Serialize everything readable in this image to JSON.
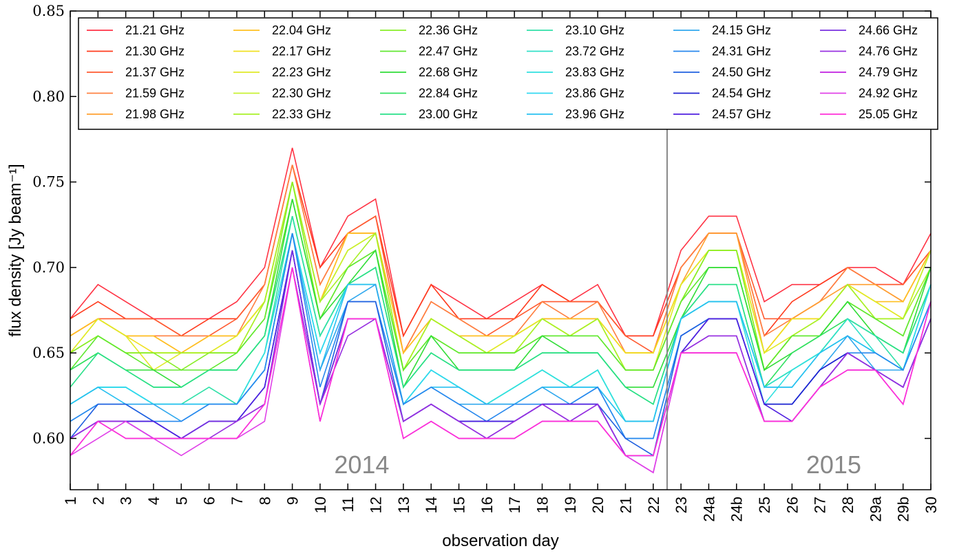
{
  "chart_data": {
    "type": "line",
    "xlabel": "observation day",
    "ylabel": "flux density [Jy beam⁻¹]",
    "ylim": [
      0.57,
      0.85
    ],
    "yticks": [
      "0.60",
      "0.65",
      "0.70",
      "0.75",
      "0.80",
      "0.85"
    ],
    "ytick_values": [
      0.6,
      0.65,
      0.7,
      0.75,
      0.8,
      0.85
    ],
    "categories": [
      "1",
      "2",
      "3",
      "4",
      "5",
      "6",
      "7",
      "8",
      "9",
      "10",
      "11",
      "12",
      "13",
      "14",
      "15",
      "16",
      "17",
      "18",
      "19",
      "20",
      "21",
      "22",
      "23",
      "24a",
      "24b",
      "25",
      "26",
      "27",
      "28",
      "29a",
      "29b",
      "30"
    ],
    "grid": false,
    "legend_position": "top",
    "annotations": [
      {
        "text": "2014",
        "x_index": 10.5
      },
      {
        "text": "2015",
        "x_index": 27.5
      }
    ],
    "divider_after_index": 21,
    "series": [
      {
        "name": "21.21 GHz",
        "color": "#ff3344",
        "values": [
          0.67,
          0.69,
          0.68,
          0.67,
          0.67,
          0.67,
          0.68,
          0.7,
          0.77,
          0.7,
          0.73,
          0.74,
          0.66,
          0.69,
          0.68,
          0.67,
          0.68,
          0.69,
          0.68,
          0.69,
          0.66,
          0.66,
          0.71,
          0.73,
          0.73,
          0.68,
          0.69,
          0.69,
          0.7,
          0.7,
          0.69,
          0.72
        ]
      },
      {
        "name": "21.30 GHz",
        "color": "#ff3b1e",
        "values": [
          0.67,
          0.68,
          0.67,
          0.67,
          0.66,
          0.67,
          0.67,
          0.69,
          0.76,
          0.7,
          0.72,
          0.73,
          0.66,
          0.69,
          0.67,
          0.67,
          0.67,
          0.69,
          0.68,
          0.68,
          0.66,
          0.66,
          0.7,
          0.72,
          0.72,
          0.66,
          0.68,
          0.69,
          0.7,
          0.69,
          0.69,
          0.71
        ]
      },
      {
        "name": "21.37 GHz",
        "color": "#ff5a30",
        "values": [
          0.66,
          0.67,
          0.67,
          0.67,
          0.66,
          0.66,
          0.67,
          0.69,
          0.76,
          0.69,
          0.72,
          0.73,
          0.65,
          0.68,
          0.67,
          0.66,
          0.67,
          0.68,
          0.68,
          0.68,
          0.66,
          0.65,
          0.7,
          0.72,
          0.72,
          0.67,
          0.67,
          0.68,
          0.7,
          0.69,
          0.69,
          0.71
        ]
      },
      {
        "name": "21.59 GHz",
        "color": "#ff8040",
        "values": [
          0.66,
          0.67,
          0.66,
          0.66,
          0.66,
          0.66,
          0.66,
          0.69,
          0.76,
          0.69,
          0.72,
          0.72,
          0.65,
          0.68,
          0.67,
          0.66,
          0.66,
          0.68,
          0.67,
          0.68,
          0.65,
          0.65,
          0.7,
          0.72,
          0.72,
          0.66,
          0.67,
          0.68,
          0.7,
          0.69,
          0.68,
          0.71
        ]
      },
      {
        "name": "21.98 GHz",
        "color": "#ffa030",
        "values": [
          0.66,
          0.67,
          0.66,
          0.66,
          0.65,
          0.66,
          0.66,
          0.68,
          0.75,
          0.68,
          0.72,
          0.72,
          0.65,
          0.67,
          0.66,
          0.66,
          0.66,
          0.67,
          0.67,
          0.67,
          0.65,
          0.65,
          0.69,
          0.72,
          0.72,
          0.65,
          0.67,
          0.68,
          0.69,
          0.69,
          0.68,
          0.71
        ]
      },
      {
        "name": "22.04 GHz",
        "color": "#ffc020",
        "values": [
          0.66,
          0.67,
          0.66,
          0.66,
          0.65,
          0.66,
          0.66,
          0.68,
          0.75,
          0.68,
          0.72,
          0.72,
          0.65,
          0.67,
          0.66,
          0.66,
          0.66,
          0.67,
          0.67,
          0.67,
          0.65,
          0.65,
          0.69,
          0.71,
          0.71,
          0.65,
          0.67,
          0.67,
          0.69,
          0.68,
          0.68,
          0.71
        ]
      },
      {
        "name": "22.17 GHz",
        "color": "#f0e020",
        "values": [
          0.65,
          0.67,
          0.66,
          0.65,
          0.65,
          0.65,
          0.66,
          0.68,
          0.75,
          0.68,
          0.71,
          0.72,
          0.64,
          0.67,
          0.66,
          0.65,
          0.66,
          0.67,
          0.66,
          0.67,
          0.65,
          0.65,
          0.69,
          0.71,
          0.71,
          0.65,
          0.67,
          0.67,
          0.69,
          0.68,
          0.67,
          0.71
        ]
      },
      {
        "name": "22.23 GHz",
        "color": "#e0ea28",
        "values": [
          0.65,
          0.67,
          0.66,
          0.64,
          0.65,
          0.65,
          0.66,
          0.68,
          0.75,
          0.68,
          0.71,
          0.72,
          0.64,
          0.67,
          0.66,
          0.65,
          0.66,
          0.67,
          0.66,
          0.67,
          0.64,
          0.64,
          0.69,
          0.71,
          0.71,
          0.65,
          0.66,
          0.67,
          0.69,
          0.68,
          0.67,
          0.71
        ]
      },
      {
        "name": "22.30 GHz",
        "color": "#c8f030",
        "values": [
          0.65,
          0.66,
          0.65,
          0.65,
          0.65,
          0.65,
          0.65,
          0.68,
          0.75,
          0.68,
          0.71,
          0.72,
          0.64,
          0.67,
          0.66,
          0.65,
          0.65,
          0.67,
          0.66,
          0.67,
          0.64,
          0.64,
          0.68,
          0.71,
          0.71,
          0.64,
          0.66,
          0.67,
          0.69,
          0.67,
          0.67,
          0.71
        ]
      },
      {
        "name": "22.33 GHz",
        "color": "#a8f028",
        "values": [
          0.65,
          0.66,
          0.65,
          0.65,
          0.65,
          0.65,
          0.65,
          0.68,
          0.75,
          0.68,
          0.7,
          0.72,
          0.64,
          0.67,
          0.66,
          0.65,
          0.65,
          0.67,
          0.66,
          0.67,
          0.64,
          0.64,
          0.68,
          0.71,
          0.71,
          0.64,
          0.66,
          0.67,
          0.69,
          0.67,
          0.67,
          0.7
        ]
      },
      {
        "name": "22.36 GHz",
        "color": "#88ee28",
        "values": [
          0.65,
          0.66,
          0.65,
          0.65,
          0.64,
          0.65,
          0.65,
          0.67,
          0.75,
          0.67,
          0.7,
          0.71,
          0.64,
          0.66,
          0.65,
          0.65,
          0.65,
          0.66,
          0.66,
          0.66,
          0.64,
          0.64,
          0.68,
          0.71,
          0.71,
          0.64,
          0.66,
          0.66,
          0.68,
          0.67,
          0.66,
          0.7
        ]
      },
      {
        "name": "22.47 GHz",
        "color": "#60e830",
        "values": [
          0.64,
          0.66,
          0.65,
          0.64,
          0.64,
          0.64,
          0.65,
          0.67,
          0.74,
          0.67,
          0.7,
          0.71,
          0.64,
          0.66,
          0.65,
          0.65,
          0.65,
          0.66,
          0.66,
          0.66,
          0.64,
          0.64,
          0.68,
          0.7,
          0.7,
          0.64,
          0.66,
          0.66,
          0.68,
          0.67,
          0.66,
          0.7
        ]
      },
      {
        "name": "22.68 GHz",
        "color": "#30dd38",
        "values": [
          0.64,
          0.65,
          0.64,
          0.64,
          0.63,
          0.64,
          0.64,
          0.66,
          0.74,
          0.67,
          0.69,
          0.71,
          0.63,
          0.66,
          0.64,
          0.64,
          0.64,
          0.66,
          0.65,
          0.65,
          0.63,
          0.63,
          0.67,
          0.7,
          0.7,
          0.64,
          0.65,
          0.66,
          0.68,
          0.66,
          0.65,
          0.7
        ]
      },
      {
        "name": "22.84 GHz",
        "color": "#30e060",
        "values": [
          0.64,
          0.65,
          0.64,
          0.63,
          0.63,
          0.64,
          0.64,
          0.66,
          0.73,
          0.66,
          0.69,
          0.7,
          0.63,
          0.65,
          0.64,
          0.64,
          0.64,
          0.65,
          0.65,
          0.65,
          0.63,
          0.62,
          0.67,
          0.69,
          0.69,
          0.63,
          0.65,
          0.66,
          0.67,
          0.66,
          0.65,
          0.69
        ]
      },
      {
        "name": "23.00 GHz",
        "color": "#28e088",
        "values": [
          0.63,
          0.65,
          0.64,
          0.63,
          0.63,
          0.64,
          0.64,
          0.66,
          0.73,
          0.66,
          0.69,
          0.7,
          0.63,
          0.65,
          0.64,
          0.64,
          0.64,
          0.65,
          0.65,
          0.65,
          0.63,
          0.62,
          0.67,
          0.69,
          0.69,
          0.63,
          0.64,
          0.65,
          0.67,
          0.66,
          0.65,
          0.69
        ]
      },
      {
        "name": "23.10 GHz",
        "color": "#30e0a8",
        "values": [
          0.62,
          0.63,
          0.63,
          0.62,
          0.62,
          0.63,
          0.62,
          0.65,
          0.73,
          0.66,
          0.69,
          0.69,
          0.62,
          0.64,
          0.63,
          0.62,
          0.63,
          0.64,
          0.63,
          0.64,
          0.61,
          0.61,
          0.67,
          0.68,
          0.68,
          0.63,
          0.64,
          0.65,
          0.67,
          0.66,
          0.64,
          0.69
        ]
      },
      {
        "name": "23.72 GHz",
        "color": "#30e0c8",
        "values": [
          0.62,
          0.63,
          0.63,
          0.62,
          0.62,
          0.62,
          0.62,
          0.65,
          0.72,
          0.65,
          0.69,
          0.69,
          0.62,
          0.64,
          0.63,
          0.62,
          0.63,
          0.64,
          0.63,
          0.64,
          0.61,
          0.61,
          0.67,
          0.68,
          0.68,
          0.63,
          0.64,
          0.65,
          0.67,
          0.65,
          0.64,
          0.69
        ]
      },
      {
        "name": "23.83 GHz",
        "color": "#30e0e0",
        "values": [
          0.62,
          0.63,
          0.63,
          0.62,
          0.62,
          0.62,
          0.62,
          0.65,
          0.72,
          0.65,
          0.69,
          0.69,
          0.62,
          0.64,
          0.63,
          0.62,
          0.63,
          0.64,
          0.63,
          0.64,
          0.61,
          0.61,
          0.67,
          0.68,
          0.68,
          0.62,
          0.64,
          0.65,
          0.66,
          0.65,
          0.64,
          0.69
        ]
      },
      {
        "name": "23.86 GHz",
        "color": "#30d8f0",
        "values": [
          0.62,
          0.63,
          0.63,
          0.62,
          0.62,
          0.62,
          0.62,
          0.64,
          0.72,
          0.65,
          0.69,
          0.69,
          0.62,
          0.64,
          0.63,
          0.62,
          0.62,
          0.63,
          0.63,
          0.63,
          0.61,
          0.61,
          0.67,
          0.68,
          0.68,
          0.63,
          0.63,
          0.65,
          0.66,
          0.65,
          0.64,
          0.69
        ]
      },
      {
        "name": "23.96 GHz",
        "color": "#28c0f0",
        "values": [
          0.62,
          0.63,
          0.62,
          0.62,
          0.62,
          0.62,
          0.62,
          0.64,
          0.72,
          0.64,
          0.69,
          0.69,
          0.62,
          0.63,
          0.63,
          0.62,
          0.62,
          0.63,
          0.63,
          0.63,
          0.61,
          0.61,
          0.67,
          0.68,
          0.68,
          0.63,
          0.63,
          0.65,
          0.66,
          0.65,
          0.64,
          0.68
        ]
      },
      {
        "name": "24.15 GHz",
        "color": "#30a8ee",
        "values": [
          0.61,
          0.62,
          0.62,
          0.62,
          0.61,
          0.62,
          0.62,
          0.64,
          0.72,
          0.64,
          0.68,
          0.69,
          0.62,
          0.63,
          0.62,
          0.62,
          0.62,
          0.63,
          0.62,
          0.63,
          0.6,
          0.6,
          0.66,
          0.67,
          0.67,
          0.62,
          0.62,
          0.64,
          0.66,
          0.64,
          0.64,
          0.68
        ]
      },
      {
        "name": "24.31 GHz",
        "color": "#2888ee",
        "values": [
          0.61,
          0.62,
          0.62,
          0.61,
          0.61,
          0.62,
          0.62,
          0.64,
          0.72,
          0.63,
          0.68,
          0.68,
          0.62,
          0.63,
          0.62,
          0.61,
          0.62,
          0.62,
          0.62,
          0.63,
          0.6,
          0.6,
          0.66,
          0.67,
          0.67,
          0.62,
          0.62,
          0.64,
          0.65,
          0.65,
          0.64,
          0.68
        ]
      },
      {
        "name": "24.50 GHz",
        "color": "#2060e0",
        "values": [
          0.6,
          0.62,
          0.62,
          0.61,
          0.6,
          0.61,
          0.61,
          0.63,
          0.71,
          0.62,
          0.68,
          0.68,
          0.61,
          0.62,
          0.61,
          0.61,
          0.61,
          0.62,
          0.62,
          0.62,
          0.6,
          0.59,
          0.66,
          0.67,
          0.67,
          0.62,
          0.62,
          0.64,
          0.65,
          0.64,
          0.63,
          0.67
        ]
      },
      {
        "name": "24.54 GHz",
        "color": "#2020d0",
        "values": [
          0.6,
          0.61,
          0.61,
          0.61,
          0.6,
          0.61,
          0.61,
          0.63,
          0.71,
          0.62,
          0.67,
          0.67,
          0.61,
          0.62,
          0.61,
          0.61,
          0.61,
          0.62,
          0.62,
          0.62,
          0.59,
          0.59,
          0.65,
          0.67,
          0.67,
          0.62,
          0.62,
          0.64,
          0.65,
          0.64,
          0.63,
          0.67
        ]
      },
      {
        "name": "24.57 GHz",
        "color": "#5020e0",
        "values": [
          0.6,
          0.61,
          0.61,
          0.61,
          0.6,
          0.61,
          0.61,
          0.63,
          0.71,
          0.62,
          0.67,
          0.67,
          0.61,
          0.62,
          0.61,
          0.61,
          0.61,
          0.62,
          0.62,
          0.62,
          0.59,
          0.59,
          0.65,
          0.67,
          0.67,
          0.62,
          0.61,
          0.63,
          0.65,
          0.64,
          0.63,
          0.67
        ]
      },
      {
        "name": "24.66 GHz",
        "color": "#7830e0",
        "values": [
          0.6,
          0.61,
          0.61,
          0.6,
          0.6,
          0.61,
          0.61,
          0.62,
          0.71,
          0.62,
          0.67,
          0.67,
          0.61,
          0.62,
          0.61,
          0.6,
          0.61,
          0.62,
          0.61,
          0.62,
          0.59,
          0.59,
          0.65,
          0.66,
          0.66,
          0.61,
          0.61,
          0.63,
          0.65,
          0.64,
          0.63,
          0.67
        ]
      },
      {
        "name": "24.76 GHz",
        "color": "#9830e0",
        "values": [
          0.6,
          0.61,
          0.61,
          0.6,
          0.6,
          0.6,
          0.61,
          0.62,
          0.7,
          0.62,
          0.66,
          0.67,
          0.61,
          0.62,
          0.61,
          0.6,
          0.61,
          0.62,
          0.61,
          0.62,
          0.59,
          0.59,
          0.65,
          0.66,
          0.66,
          0.61,
          0.61,
          0.63,
          0.65,
          0.64,
          0.63,
          0.67
        ]
      },
      {
        "name": "24.79 GHz",
        "color": "#c020e0",
        "values": [
          0.59,
          0.61,
          0.6,
          0.6,
          0.6,
          0.6,
          0.6,
          0.62,
          0.7,
          0.61,
          0.67,
          0.67,
          0.6,
          0.61,
          0.6,
          0.6,
          0.6,
          0.61,
          0.61,
          0.61,
          0.59,
          0.58,
          0.65,
          0.65,
          0.65,
          0.61,
          0.61,
          0.63,
          0.64,
          0.64,
          0.62,
          0.68
        ]
      },
      {
        "name": "24.92 GHz",
        "color": "#e040e8",
        "values": [
          0.59,
          0.6,
          0.61,
          0.6,
          0.59,
          0.6,
          0.6,
          0.61,
          0.7,
          0.61,
          0.67,
          0.67,
          0.6,
          0.61,
          0.6,
          0.6,
          0.6,
          0.61,
          0.61,
          0.61,
          0.59,
          0.58,
          0.65,
          0.65,
          0.65,
          0.61,
          0.61,
          0.63,
          0.64,
          0.64,
          0.62,
          0.68
        ]
      },
      {
        "name": "25.05 GHz",
        "color": "#ff30d8",
        "values": [
          0.59,
          0.61,
          0.6,
          0.6,
          0.6,
          0.6,
          0.6,
          0.62,
          0.7,
          0.61,
          0.67,
          0.67,
          0.6,
          0.61,
          0.6,
          0.6,
          0.6,
          0.61,
          0.61,
          0.61,
          0.59,
          0.59,
          0.65,
          0.65,
          0.65,
          0.61,
          0.61,
          0.63,
          0.64,
          0.64,
          0.62,
          0.68
        ]
      }
    ]
  }
}
